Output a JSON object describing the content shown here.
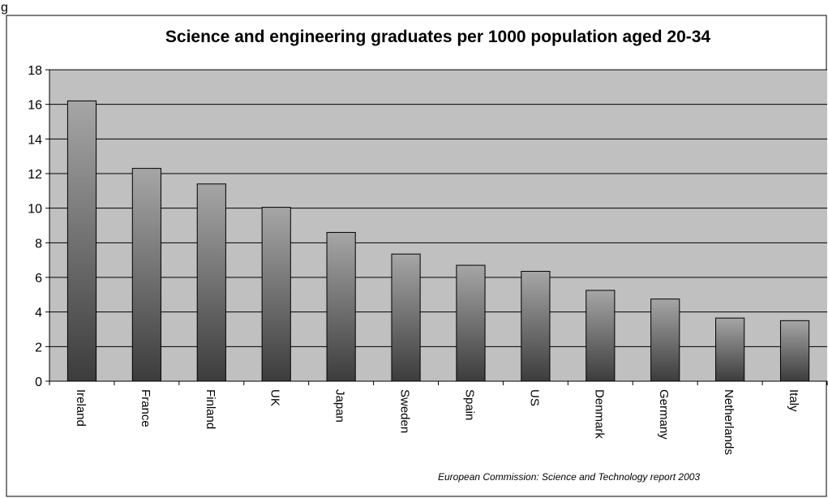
{
  "figure_label": "g",
  "chart_data": {
    "type": "bar",
    "title": "Science and engineering graduates per 1000 population aged 20-34",
    "categories": [
      "Ireland",
      "France",
      "Finland",
      "UK",
      "Japan",
      "Sweden",
      "Spain",
      "US",
      "Denmark",
      "Germany",
      "Netherlands",
      "Italy"
    ],
    "values": [
      16.2,
      12.3,
      11.4,
      10.05,
      8.6,
      7.35,
      6.7,
      6.35,
      5.25,
      4.75,
      3.65,
      3.5
    ],
    "xlabel": "",
    "ylabel": "",
    "ylim": [
      0,
      18
    ],
    "yticks": [
      "0",
      "2",
      "4",
      "6",
      "8",
      "10",
      "12",
      "14",
      "16",
      "18"
    ],
    "grid": true,
    "legend": "none",
    "source": "European Commission: Science and Technology report 2003",
    "colors": {
      "plot_background": "#c0c0c0",
      "bar_top": "#a6a6a6",
      "bar_bottom": "#3c3c3c",
      "gridline": "#000000"
    }
  }
}
